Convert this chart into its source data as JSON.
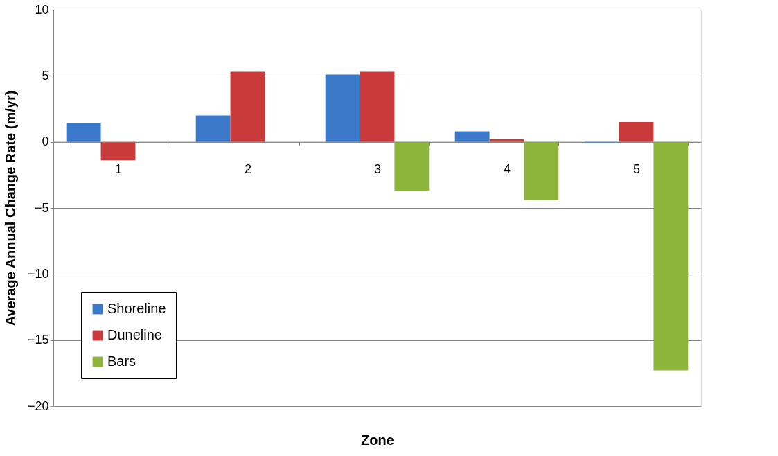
{
  "chart_data": {
    "type": "bar",
    "xlabel": "Zone",
    "ylabel": "Average Annual Change Rate (m/yr)",
    "categories": [
      "1",
      "2",
      "3",
      "4",
      "5"
    ],
    "series": [
      {
        "name": "Shoreline",
        "color": "#3a78c9",
        "values": [
          1.4,
          2.0,
          5.1,
          0.8,
          -0.1
        ]
      },
      {
        "name": "Duneline",
        "color": "#c93a3a",
        "values": [
          -1.4,
          5.3,
          5.3,
          0.2,
          1.5
        ]
      },
      {
        "name": "Bars",
        "color": "#8db53c",
        "values": [
          null,
          null,
          -3.7,
          -4.4,
          -17.3
        ]
      }
    ],
    "ylim": [
      -20,
      10
    ],
    "yticks": [
      -20,
      -15,
      -10,
      -5,
      0,
      5,
      10
    ],
    "grid": "y",
    "legend": "bottom left"
  }
}
